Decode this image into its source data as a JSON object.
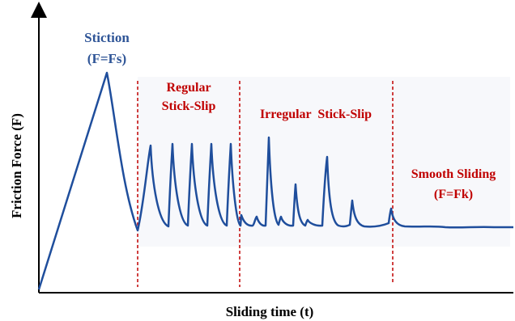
{
  "axes": {
    "x_label": "Sliding time (t)",
    "y_label": "Friction Force (F)"
  },
  "regions": [
    {
      "label_lines": [
        "Stiction",
        "(F=Fs)"
      ]
    },
    {
      "label_lines": [
        "Regular",
        "Stick-Slip"
      ]
    },
    {
      "label_lines": [
        "Irregular  Stick-Slip"
      ]
    },
    {
      "label_lines": [
        "Smooth Sliding",
        "(F=Fk)"
      ]
    }
  ],
  "colors": {
    "curve": "#1f4e9c",
    "region_label_stiction": "#2f5597",
    "region_label_other": "#c00000",
    "divider": "#c00000",
    "axis": "#000000"
  }
}
